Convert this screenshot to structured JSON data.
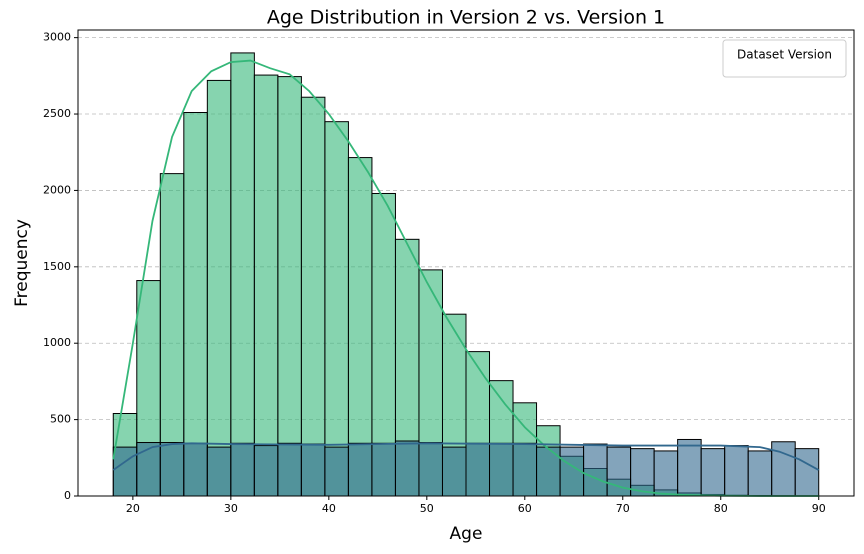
{
  "chart_data": {
    "type": "histogram",
    "title": "Age Distribution in Version 2 vs. Version 1",
    "xlabel": "Age",
    "ylabel": "Frequency",
    "bins": [
      18,
      20.4,
      22.8,
      25.2,
      27.6,
      30,
      32.4,
      34.8,
      37.2,
      39.6,
      42,
      44.4,
      46.8,
      49.2,
      51.6,
      54,
      56.4,
      58.8,
      61.2,
      63.6,
      66,
      68.4,
      70.8,
      73.2,
      75.6,
      78,
      80.4,
      82.8,
      85.2,
      87.6,
      90
    ],
    "series": [
      {
        "color": "#35b779",
        "alpha": 0.6,
        "values": [
          540,
          1410,
          2110,
          2510,
          2720,
          2900,
          2755,
          2745,
          2610,
          2450,
          2215,
          1980,
          1680,
          1480,
          1190,
          945,
          755,
          610,
          460,
          260,
          180,
          110,
          70,
          40,
          20,
          10,
          5,
          3,
          1,
          0
        ],
        "kde": {
          "x": [
            18,
            20,
            22,
            24,
            26,
            28,
            30,
            32,
            34,
            36,
            38,
            40,
            42,
            44,
            46,
            48,
            50,
            52,
            54,
            56,
            58,
            60,
            62,
            64,
            66,
            68,
            70,
            72,
            74,
            76,
            78,
            80,
            84,
            90
          ],
          "values": [
            240,
            1000,
            1800,
            2350,
            2650,
            2780,
            2840,
            2850,
            2800,
            2760,
            2650,
            2500,
            2320,
            2120,
            1900,
            1650,
            1400,
            1170,
            960,
            770,
            600,
            450,
            330,
            230,
            150,
            95,
            55,
            30,
            15,
            8,
            4,
            2,
            0,
            0
          ]
        }
      },
      {
        "color": "#31688e",
        "alpha": 0.6,
        "values": [
          320,
          350,
          350,
          345,
          320,
          345,
          330,
          345,
          340,
          320,
          345,
          345,
          360,
          350,
          320,
          345,
          345,
          345,
          320,
          320,
          340,
          320,
          310,
          295,
          370,
          310,
          330,
          295,
          355,
          310
        ],
        "kde": {
          "x": [
            18,
            20,
            22,
            24,
            26,
            30,
            40,
            50,
            60,
            70,
            80,
            84,
            86,
            88,
            90
          ],
          "values": [
            170,
            260,
            320,
            340,
            345,
            340,
            335,
            345,
            340,
            330,
            330,
            320,
            290,
            240,
            170
          ]
        }
      }
    ],
    "xlim": [
      14.4,
      93.6
    ],
    "xticks": [
      20,
      30,
      40,
      50,
      60,
      70,
      80,
      90
    ],
    "ylim": [
      0,
      3050
    ],
    "yticks": [
      0,
      500,
      1000,
      1500,
      2000,
      2500,
      3000
    ],
    "grid": true,
    "legend": {
      "title": "Dataset Version",
      "loc": "upper right"
    }
  }
}
